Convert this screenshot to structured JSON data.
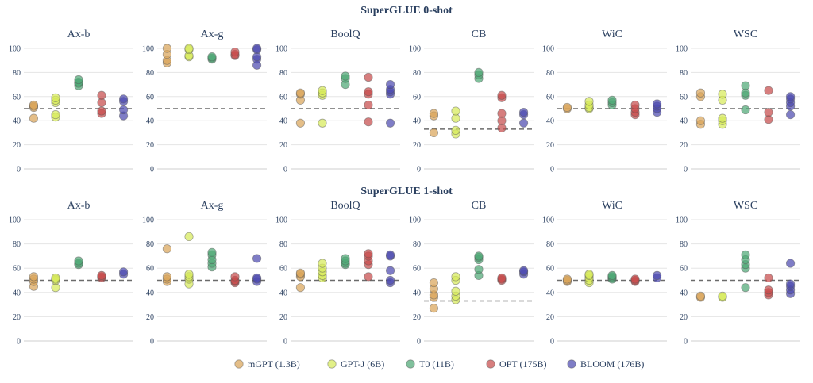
{
  "colors": {
    "mGPT (1.3B)": "#d9a55a",
    "GPT-J (6B)": "#d7ea5a",
    "T0 (11B)": "#4fa776",
    "OPT (175B)": "#c64c4c",
    "BLOOM (176B)": "#4d4bb0"
  },
  "legend": [
    "mGPT (1.3B)",
    "GPT-J (6B)",
    "T0 (11B)",
    "OPT (175B)",
    "BLOOM (176B)"
  ],
  "y_ticks": [
    "0",
    "20",
    "40",
    "60",
    "80",
    "100"
  ],
  "chart_data": [
    {
      "type": "scatter",
      "title": "SuperGLUE 0-shot",
      "ylim": [
        0,
        100
      ],
      "panels": [
        {
          "title": "Ax-b",
          "baseline": 50,
          "series": [
            {
              "name": "mGPT (1.3B)",
              "values": [
                42,
                51,
                52,
                53
              ]
            },
            {
              "name": "GPT-J (6B)",
              "values": [
                43,
                45,
                55,
                57,
                59
              ]
            },
            {
              "name": "T0 (11B)",
              "values": [
                69,
                71,
                72,
                74
              ]
            },
            {
              "name": "OPT (175B)",
              "values": [
                46,
                48,
                55,
                61
              ]
            },
            {
              "name": "BLOOM (176B)",
              "values": [
                44,
                49,
                56,
                58
              ]
            }
          ]
        },
        {
          "title": "Ax-g",
          "baseline": 50,
          "series": [
            {
              "name": "mGPT (1.3B)",
              "values": [
                88,
                90,
                95,
                100
              ]
            },
            {
              "name": "GPT-J (6B)",
              "values": [
                93,
                94,
                99,
                100
              ]
            },
            {
              "name": "T0 (11B)",
              "values": [
                91,
                92,
                93
              ]
            },
            {
              "name": "OPT (175B)",
              "values": [
                94,
                95,
                97
              ]
            },
            {
              "name": "BLOOM (176B)",
              "values": [
                86,
                91,
                93,
                99,
                100
              ]
            }
          ]
        },
        {
          "title": "BoolQ",
          "baseline": 50,
          "series": [
            {
              "name": "mGPT (1.3B)",
              "values": [
                38,
                57,
                62,
                63
              ]
            },
            {
              "name": "GPT-J (6B)",
              "values": [
                38,
                61,
                63,
                65
              ]
            },
            {
              "name": "T0 (11B)",
              "values": [
                70,
                75,
                77
              ]
            },
            {
              "name": "OPT (175B)",
              "values": [
                39,
                53,
                62,
                64,
                76
              ]
            },
            {
              "name": "BLOOM (176B)",
              "values": [
                38,
                62,
                64,
                66,
                70
              ]
            }
          ]
        },
        {
          "title": "CB",
          "baseline": 33,
          "series": [
            {
              "name": "mGPT (1.3B)",
              "values": [
                30,
                44,
                46
              ]
            },
            {
              "name": "GPT-J (6B)",
              "values": [
                29,
                32,
                42,
                48
              ]
            },
            {
              "name": "T0 (11B)",
              "values": [
                75,
                78,
                80
              ]
            },
            {
              "name": "OPT (175B)",
              "values": [
                34,
                40,
                46,
                59,
                61
              ]
            },
            {
              "name": "BLOOM (176B)",
              "values": [
                38,
                45,
                47
              ]
            }
          ]
        },
        {
          "title": "WiC",
          "baseline": 50,
          "series": [
            {
              "name": "mGPT (1.3B)",
              "values": [
                50,
                51
              ]
            },
            {
              "name": "GPT-J (6B)",
              "values": [
                50,
                51,
                53,
                56
              ]
            },
            {
              "name": "T0 (11B)",
              "values": [
                53,
                55,
                57
              ]
            },
            {
              "name": "OPT (175B)",
              "values": [
                45,
                47,
                50,
                53
              ]
            },
            {
              "name": "BLOOM (176B)",
              "values": [
                47,
                50,
                52,
                54
              ]
            }
          ]
        },
        {
          "title": "WSC",
          "baseline": 50,
          "series": [
            {
              "name": "mGPT (1.3B)",
              "values": [
                37,
                40,
                60,
                63
              ]
            },
            {
              "name": "GPT-J (6B)",
              "values": [
                37,
                40,
                42,
                57,
                62
              ]
            },
            {
              "name": "T0 (11B)",
              "values": [
                49,
                61,
                63,
                69
              ]
            },
            {
              "name": "OPT (175B)",
              "values": [
                41,
                47,
                65
              ]
            },
            {
              "name": "BLOOM (176B)",
              "values": [
                45,
                52,
                55,
                58,
                60
              ]
            }
          ]
        }
      ]
    },
    {
      "type": "scatter",
      "title": "SuperGLUE 1-shot",
      "ylim": [
        0,
        100
      ],
      "panels": [
        {
          "title": "Ax-b",
          "baseline": 50,
          "series": [
            {
              "name": "mGPT (1.3B)",
              "values": [
                45,
                49,
                51,
                53
              ]
            },
            {
              "name": "GPT-J (6B)",
              "values": [
                44,
                50,
                51,
                52
              ]
            },
            {
              "name": "T0 (11B)",
              "values": [
                63,
                64,
                66
              ]
            },
            {
              "name": "OPT (175B)",
              "values": [
                52,
                53,
                54
              ]
            },
            {
              "name": "BLOOM (176B)",
              "values": [
                55,
                57
              ]
            }
          ]
        },
        {
          "title": "Ax-g",
          "baseline": 50,
          "series": [
            {
              "name": "mGPT (1.3B)",
              "values": [
                49,
                51,
                53,
                76
              ]
            },
            {
              "name": "GPT-J (6B)",
              "values": [
                47,
                51,
                53,
                55,
                86
              ]
            },
            {
              "name": "T0 (11B)",
              "values": [
                61,
                64,
                67,
                71,
                73
              ]
            },
            {
              "name": "OPT (175B)",
              "values": [
                48,
                49,
                50,
                53
              ]
            },
            {
              "name": "BLOOM (176B)",
              "values": [
                49,
                51,
                52,
                68
              ]
            }
          ]
        },
        {
          "title": "BoolQ",
          "baseline": 50,
          "series": [
            {
              "name": "mGPT (1.3B)",
              "values": [
                44,
                53,
                55,
                56
              ]
            },
            {
              "name": "GPT-J (6B)",
              "values": [
                52,
                54,
                57,
                60,
                64
              ]
            },
            {
              "name": "T0 (11B)",
              "values": [
                63,
                64,
                66,
                68
              ]
            },
            {
              "name": "OPT (175B)",
              "values": [
                53,
                63,
                66,
                70,
                72
              ]
            },
            {
              "name": "BLOOM (176B)",
              "values": [
                48,
                50,
                58,
                70,
                71
              ]
            }
          ]
        },
        {
          "title": "CB",
          "baseline": 33,
          "series": [
            {
              "name": "mGPT (1.3B)",
              "values": [
                27,
                36,
                38,
                43,
                48
              ]
            },
            {
              "name": "GPT-J (6B)",
              "values": [
                34,
                37,
                41,
                50,
                53
              ]
            },
            {
              "name": "T0 (11B)",
              "values": [
                54,
                59,
                67,
                69,
                70
              ]
            },
            {
              "name": "OPT (175B)",
              "values": [
                50,
                51,
                52
              ]
            },
            {
              "name": "BLOOM (176B)",
              "values": [
                55,
                57,
                58
              ]
            }
          ]
        },
        {
          "title": "WiC",
          "baseline": 50,
          "series": [
            {
              "name": "mGPT (1.3B)",
              "values": [
                49,
                50,
                51
              ]
            },
            {
              "name": "GPT-J (6B)",
              "values": [
                48,
                50,
                52,
                54,
                55
              ]
            },
            {
              "name": "T0 (11B)",
              "values": [
                51,
                52,
                53,
                54
              ]
            },
            {
              "name": "OPT (175B)",
              "values": [
                49,
                50,
                51
              ]
            },
            {
              "name": "BLOOM (176B)",
              "values": [
                52,
                54
              ]
            }
          ]
        },
        {
          "title": "WSC",
          "baseline": 50,
          "series": [
            {
              "name": "mGPT (1.3B)",
              "values": [
                36,
                37
              ]
            },
            {
              "name": "GPT-J (6B)",
              "values": [
                36,
                37
              ]
            },
            {
              "name": "T0 (11B)",
              "values": [
                44,
                60,
                63,
                67,
                71
              ]
            },
            {
              "name": "OPT (175B)",
              "values": [
                38,
                40,
                42,
                52
              ]
            },
            {
              "name": "BLOOM (176B)",
              "values": [
                39,
                42,
                45,
                47,
                64
              ]
            }
          ]
        }
      ]
    }
  ]
}
